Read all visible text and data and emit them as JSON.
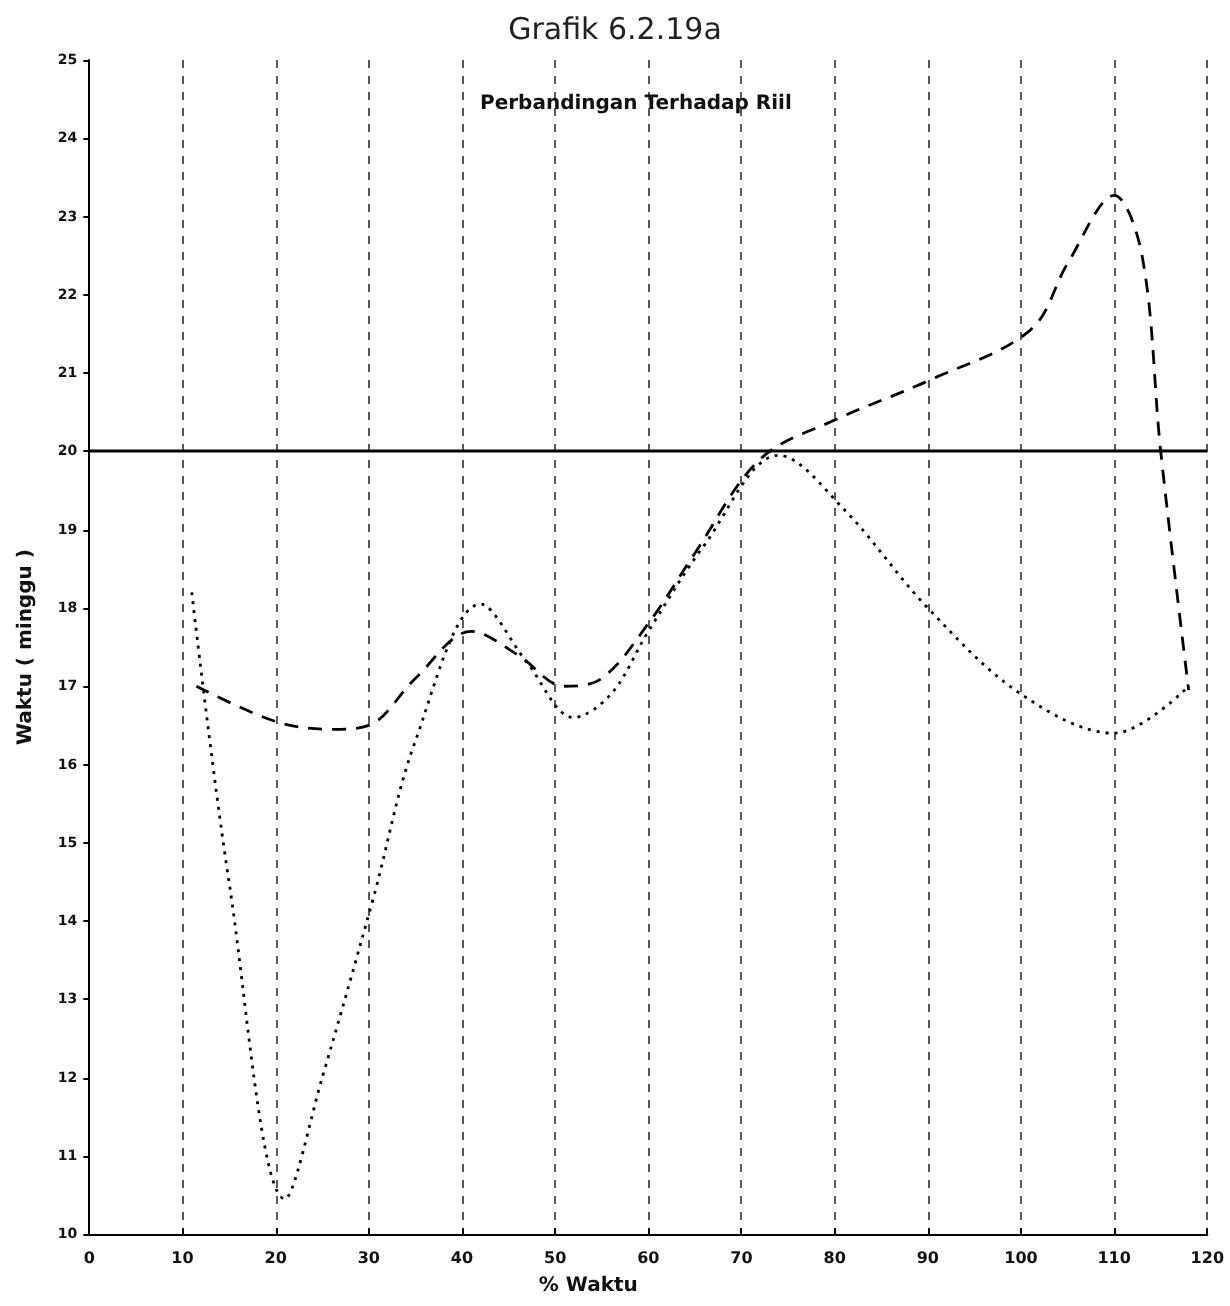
{
  "chart_data": {
    "type": "line",
    "title": "Grafik 6.2.19a",
    "subtitle": "Perbandingan Terhadap Riil",
    "xlabel": "% Waktu",
    "ylabel": "Waktu ( minggu )",
    "xlim": [
      0,
      120
    ],
    "xticks": [
      0,
      10,
      20,
      30,
      40,
      50,
      60,
      70,
      80,
      90,
      100,
      110,
      120
    ],
    "ylim": [
      10,
      25
    ],
    "yticks": [
      10,
      11,
      12,
      13,
      14,
      15,
      16,
      17,
      18,
      19,
      20,
      21,
      22,
      23,
      24,
      25
    ],
    "grid": "x",
    "marker": "none",
    "series": [
      {
        "color": "#000000",
        "line_style": "dashed",
        "x": [
          11.5,
          20,
          26,
          30,
          35,
          41,
          46,
          51,
          55,
          60,
          65,
          72,
          80,
          90,
          101,
          105,
          110,
          113,
          115,
          118
        ],
        "values": [
          17.0,
          16.55,
          16.45,
          16.5,
          17.1,
          17.7,
          17.4,
          17.0,
          17.1,
          17.8,
          18.7,
          19.9,
          20.4,
          20.9,
          21.55,
          22.4,
          23.27,
          22.5,
          20.0,
          16.95
        ]
      },
      {
        "color": "#000000",
        "line_style": "dotted",
        "x": [
          11,
          15,
          21,
          25,
          30.5,
          35,
          42,
          47,
          52,
          56,
          60,
          66,
          74,
          81,
          90,
          100,
          110,
          118
        ],
        "values": [
          18.2,
          14.5,
          10.45,
          12.0,
          14.3,
          16.3,
          18.05,
          17.3,
          16.6,
          16.9,
          17.7,
          18.8,
          19.95,
          19.26,
          18.0,
          16.9,
          16.4,
          17.0
        ]
      }
    ],
    "ref_lines": [
      {
        "axis": "y",
        "value": 20,
        "color": "#000000",
        "line_style": "solid"
      }
    ]
  }
}
